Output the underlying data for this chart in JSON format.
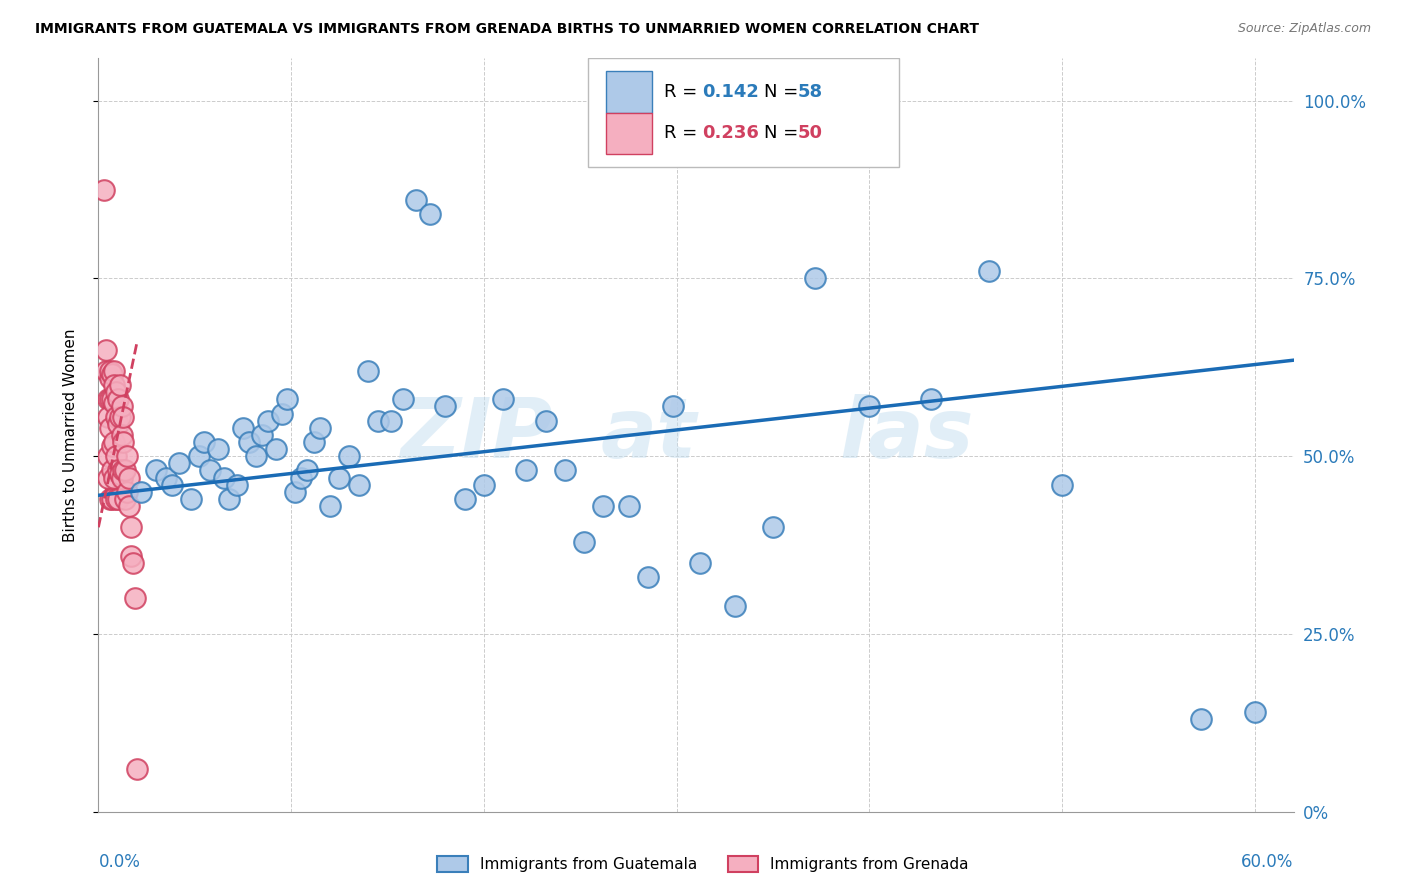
{
  "title": "IMMIGRANTS FROM GUATEMALA VS IMMIGRANTS FROM GRENADA BIRTHS TO UNMARRIED WOMEN CORRELATION CHART",
  "source": "Source: ZipAtlas.com",
  "ylabel": "Births to Unmarried Women",
  "xlim": [
    0.0,
    0.62
  ],
  "ylim": [
    0.0,
    1.06
  ],
  "yticks": [
    0.0,
    0.25,
    0.5,
    0.75,
    1.0
  ],
  "ytick_labels": [
    "0%",
    "25.0%",
    "50.0%",
    "75.0%",
    "100.0%"
  ],
  "xticks": [
    0.0,
    0.1,
    0.2,
    0.3,
    0.4,
    0.5,
    0.6
  ],
  "guatemala_color": "#aec9e8",
  "guatemala_edge": "#3a7fba",
  "grenada_color": "#f5afc0",
  "grenada_edge": "#d04060",
  "blue_line_color": "#1a6bb5",
  "pink_line_color": "#d04060",
  "tick_color": "#2b7bba",
  "guatemala_R": 0.142,
  "guatemala_N": 58,
  "grenada_R": 0.236,
  "grenada_N": 50,
  "guatemala_x": [
    0.022,
    0.03,
    0.035,
    0.038,
    0.042,
    0.048,
    0.052,
    0.055,
    0.058,
    0.062,
    0.065,
    0.068,
    0.072,
    0.075,
    0.078,
    0.082,
    0.085,
    0.088,
    0.092,
    0.095,
    0.098,
    0.102,
    0.105,
    0.108,
    0.112,
    0.115,
    0.12,
    0.125,
    0.13,
    0.135,
    0.14,
    0.145,
    0.152,
    0.158,
    0.165,
    0.172,
    0.18,
    0.19,
    0.2,
    0.21,
    0.222,
    0.232,
    0.242,
    0.252,
    0.262,
    0.275,
    0.285,
    0.298,
    0.312,
    0.33,
    0.35,
    0.372,
    0.4,
    0.432,
    0.462,
    0.5,
    0.572,
    0.6
  ],
  "guatemala_y": [
    0.45,
    0.48,
    0.47,
    0.46,
    0.49,
    0.44,
    0.5,
    0.52,
    0.48,
    0.51,
    0.47,
    0.44,
    0.46,
    0.54,
    0.52,
    0.5,
    0.53,
    0.55,
    0.51,
    0.56,
    0.58,
    0.45,
    0.47,
    0.48,
    0.52,
    0.54,
    0.43,
    0.47,
    0.5,
    0.46,
    0.62,
    0.55,
    0.55,
    0.58,
    0.86,
    0.84,
    0.57,
    0.44,
    0.46,
    0.58,
    0.48,
    0.55,
    0.48,
    0.38,
    0.43,
    0.43,
    0.33,
    0.57,
    0.35,
    0.29,
    0.4,
    0.75,
    0.57,
    0.58,
    0.76,
    0.46,
    0.13,
    0.14
  ],
  "grenada_x": [
    0.003,
    0.004,
    0.004,
    0.005,
    0.005,
    0.005,
    0.005,
    0.006,
    0.006,
    0.006,
    0.006,
    0.006,
    0.007,
    0.007,
    0.007,
    0.007,
    0.007,
    0.008,
    0.008,
    0.008,
    0.008,
    0.008,
    0.009,
    0.009,
    0.009,
    0.009,
    0.01,
    0.01,
    0.01,
    0.01,
    0.011,
    0.011,
    0.011,
    0.012,
    0.012,
    0.012,
    0.013,
    0.013,
    0.013,
    0.014,
    0.014,
    0.015,
    0.015,
    0.016,
    0.016,
    0.017,
    0.017,
    0.018,
    0.019,
    0.02
  ],
  "grenada_y": [
    0.875,
    0.62,
    0.65,
    0.58,
    0.555,
    0.5,
    0.47,
    0.61,
    0.58,
    0.54,
    0.44,
    0.62,
    0.615,
    0.58,
    0.515,
    0.48,
    0.44,
    0.62,
    0.6,
    0.575,
    0.52,
    0.47,
    0.59,
    0.555,
    0.5,
    0.44,
    0.58,
    0.545,
    0.48,
    0.44,
    0.6,
    0.555,
    0.475,
    0.57,
    0.53,
    0.47,
    0.555,
    0.52,
    0.48,
    0.48,
    0.44,
    0.5,
    0.45,
    0.47,
    0.43,
    0.4,
    0.36,
    0.35,
    0.3,
    0.06
  ],
  "blue_line_x0": 0.0,
  "blue_line_x1": 0.62,
  "blue_line_y0": 0.445,
  "blue_line_y1": 0.635,
  "pink_line_x0": 0.0,
  "pink_line_x1": 0.02,
  "pink_line_y0": 0.4,
  "pink_line_y1": 0.66
}
